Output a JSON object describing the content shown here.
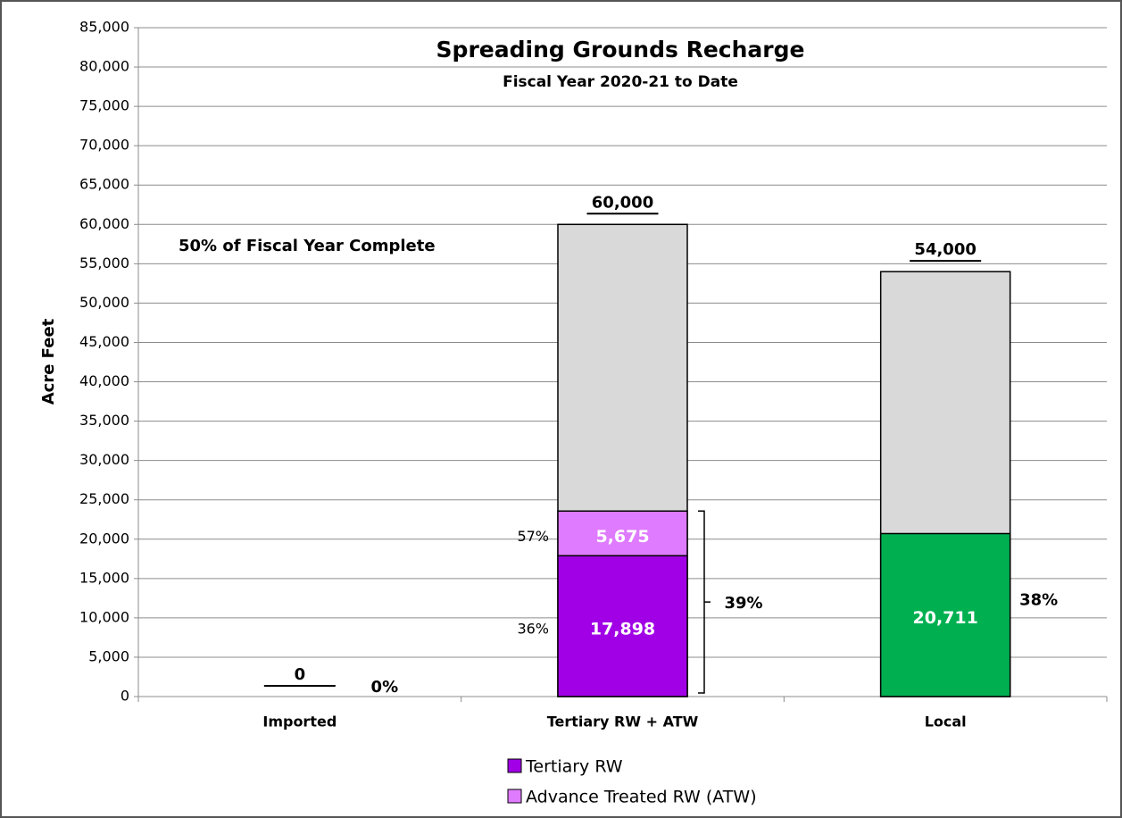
{
  "chart_data": {
    "type": "bar",
    "stacked": true,
    "title": "Spreading Grounds Recharge",
    "subtitle": "Fiscal Year 2020-21 to Date",
    "y_label": "Acre Feet",
    "annotation": "50% of Fiscal Year Complete",
    "categories": [
      "Imported",
      "Tertiary RW + ATW",
      "Local"
    ],
    "series": [
      {
        "name": "Tertiary RW",
        "color": "#a100e6",
        "values": [
          null,
          17898,
          null
        ],
        "value_labels": [
          null,
          "17,898",
          null
        ],
        "percent_labels": [
          null,
          "36%",
          null
        ]
      },
      {
        "name": "Advance Treated RW (ATW)",
        "color": "#df7bff",
        "values": [
          null,
          5675,
          null
        ],
        "value_labels": [
          null,
          "5,675",
          null
        ],
        "percent_labels": [
          null,
          "57%",
          null
        ]
      },
      {
        "color": "#00b050",
        "values": [
          null,
          null,
          20711
        ],
        "value_labels": [
          null,
          null,
          "20,711"
        ]
      }
    ],
    "targets": {
      "color": "#d9d9d9",
      "values": [
        0,
        60000,
        54000
      ],
      "value_labels": [
        "0",
        "60,000",
        "54,000"
      ]
    },
    "total_percent_labels": [
      "0%",
      "39%",
      "38%"
    ],
    "ylim": [
      0,
      85000
    ],
    "yticks": [
      0,
      {
        "value": 5000,
        "label": "5,000"
      },
      {
        "value": 10000,
        "label": "10,000"
      },
      {
        "value": 15000,
        "label": "15,000"
      },
      {
        "value": 20000,
        "label": "20,000"
      },
      {
        "value": 25000,
        "label": "25,000"
      },
      {
        "value": 30000,
        "label": "30,000"
      },
      {
        "value": 35000,
        "label": "35,000"
      },
      {
        "value": 40000,
        "label": "40,000"
      },
      {
        "value": 45000,
        "label": "45,000"
      },
      {
        "value": 50000,
        "label": "50,000"
      },
      {
        "value": 55000,
        "label": "55,000"
      },
      {
        "value": 60000,
        "label": "60,000"
      },
      {
        "value": 65000,
        "label": "65,000"
      },
      {
        "value": 70000,
        "label": "70,000"
      },
      {
        "value": 75000,
        "label": "75,000"
      },
      {
        "value": 80000,
        "label": "80,000"
      },
      {
        "value": 85000,
        "label": "85,000"
      }
    ],
    "grid": true
  }
}
